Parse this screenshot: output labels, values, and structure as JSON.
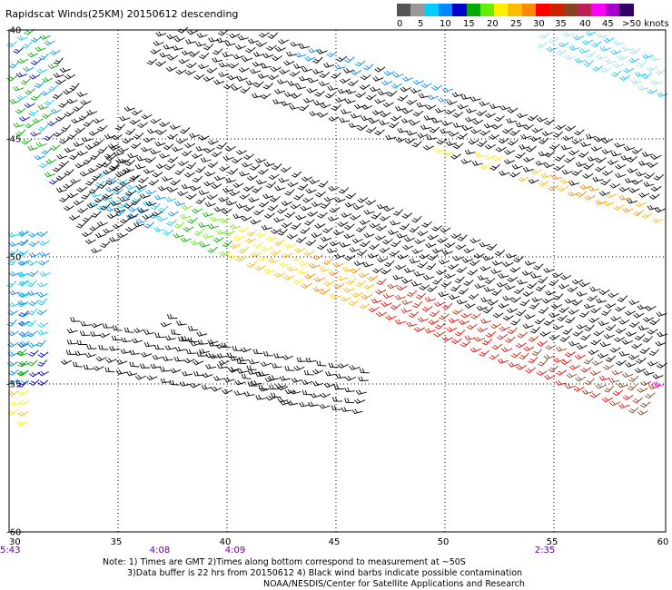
{
  "title": "Rapidscat Winds(25KM) 20150612 descending",
  "legend": {
    "colors": [
      "#555555",
      "#999999",
      "#00ccff",
      "#0088ff",
      "#0000cc",
      "#00aa00",
      "#66ee00",
      "#ffee00",
      "#ffbb00",
      "#ff8800",
      "#ff0000",
      "#cc2200",
      "#884422",
      "#bb2255",
      "#ff00ff",
      "#aa00cc",
      "#330066"
    ],
    "labels": [
      "0",
      "5",
      "10",
      "15",
      "20",
      "25",
      "30",
      "35",
      "40",
      "45",
      ">50 knots"
    ]
  },
  "map": {
    "lon_labels": [
      "30",
      "35",
      "40",
      "45",
      "50",
      "55",
      "60"
    ],
    "lat_labels": [
      "-40",
      "-45",
      "-50",
      "-55",
      "-60"
    ]
  },
  "times": [
    "5:43",
    "4:08",
    "4:09",
    "2:35"
  ],
  "time_color": "#660099",
  "notes": {
    "line1": "Note: 1) Times are GMT 2)Times along bottom correspond to measurement at ~50S",
    "line2": "3)Data buffer is 22 hrs from 20150612 4) Black wind barbs indicate possible contamination",
    "line3": "NOAA/NESDIS/Center for Satellite Applications and Research"
  }
}
